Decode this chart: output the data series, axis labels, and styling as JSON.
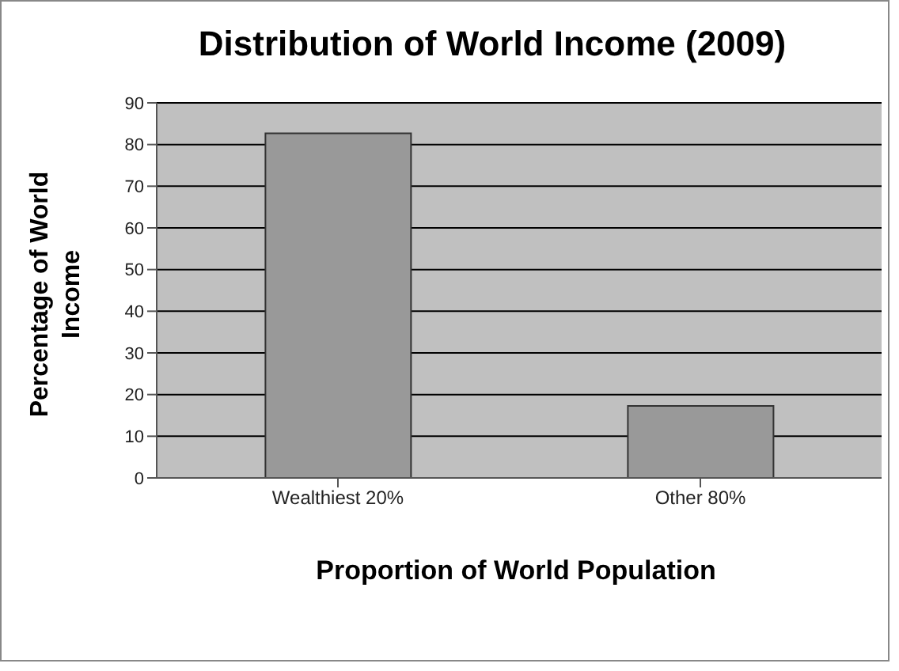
{
  "chart_data": {
    "type": "bar",
    "title": "Distribution of World Income (2009)",
    "xlabel": "Proportion of World Population",
    "ylabel": "Percentage of World Income",
    "categories": [
      "Wealthiest 20%",
      "Other 80%"
    ],
    "values": [
      82.7,
      17.3
    ],
    "color": "#999999",
    "ylim": [
      0,
      90
    ],
    "yticks": [
      0,
      10,
      20,
      30,
      40,
      50,
      60,
      70,
      80,
      90
    ],
    "grid": "y"
  }
}
